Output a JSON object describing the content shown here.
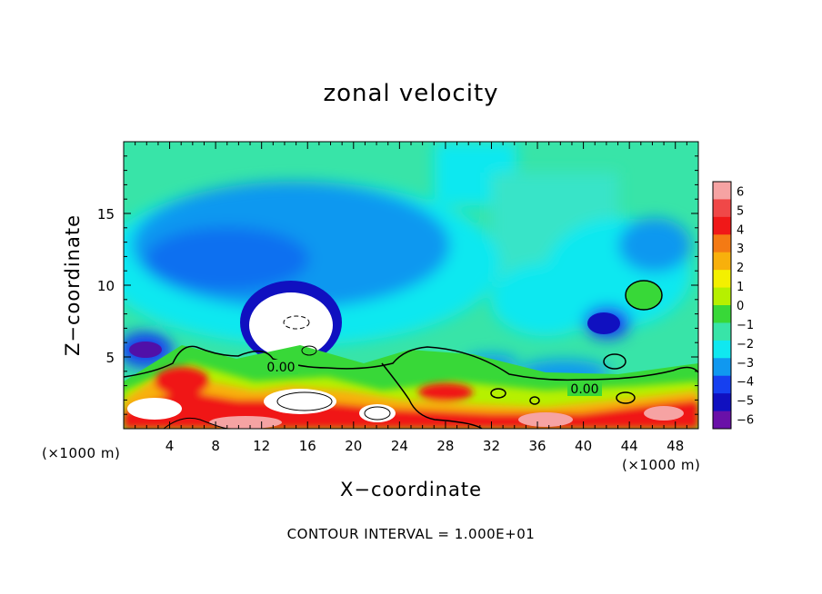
{
  "title": "zonal velocity",
  "xlabel": "X−coordinate",
  "ylabel": "Z−coordinate",
  "x_unit_left": "(×1000 m)",
  "x_unit_right": "(×1000 m)",
  "contour_note": "CONTOUR INTERVAL = 1.000E+01",
  "colorbar": {
    "ticks": [
      "6",
      "5",
      "4",
      "3",
      "2",
      "1",
      "0",
      "−1",
      "−2",
      "−3",
      "−4",
      "−5",
      "−6"
    ],
    "colors": [
      "#f6a3a3",
      "#f04848",
      "#f01818",
      "#f47a14",
      "#f8b00c",
      "#f4f000",
      "#b6f000",
      "#38d838",
      "#38e4a8",
      "#10e8f0",
      "#1098f0",
      "#1640f0",
      "#1010c0",
      "#6a10a8"
    ]
  },
  "chart_data": {
    "type": "heatmap",
    "title": "zonal velocity",
    "xlabel": "X−coordinate",
    "ylabel": "Z−coordinate",
    "xlim": [
      0,
      50
    ],
    "ylim": [
      0,
      20
    ],
    "x_ticks": [
      "4",
      "8",
      "12",
      "16",
      "20",
      "24",
      "28",
      "32",
      "36",
      "40",
      "44",
      "48"
    ],
    "y_ticks": [
      "5",
      "10",
      "15"
    ],
    "contour_labels": [
      "0.00",
      "0.00"
    ],
    "colorbar_range": [
      -6,
      6
    ]
  }
}
